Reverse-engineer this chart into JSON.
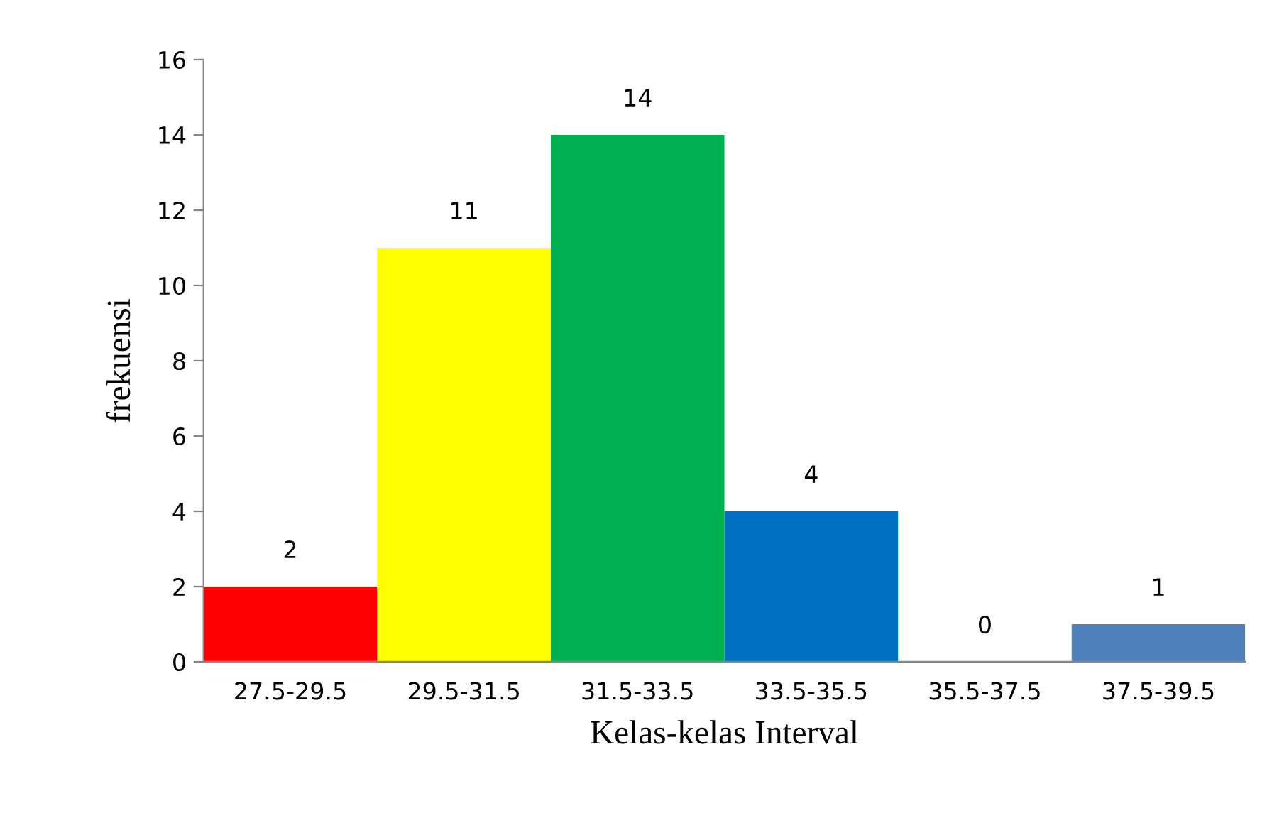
{
  "chart_data": {
    "type": "bar",
    "xlabel": "Kelas-kelas Interval",
    "ylabel": "frekuensi",
    "categories": [
      "27.5-29.5",
      "29.5-31.5",
      "31.5-33.5",
      "33.5-35.5",
      "35.5-37.5",
      "37.5-39.5"
    ],
    "values": [
      2,
      11,
      14,
      4,
      0,
      1
    ],
    "colors": [
      "#ff0000",
      "#ffff00",
      "#00b050",
      "#0070c0",
      "#0070c0",
      "#4f81bd"
    ],
    "ylim": [
      0,
      16
    ],
    "yticks": [
      0,
      2,
      4,
      6,
      8,
      10,
      12,
      14,
      16
    ],
    "grid": false,
    "data_labels": true
  }
}
